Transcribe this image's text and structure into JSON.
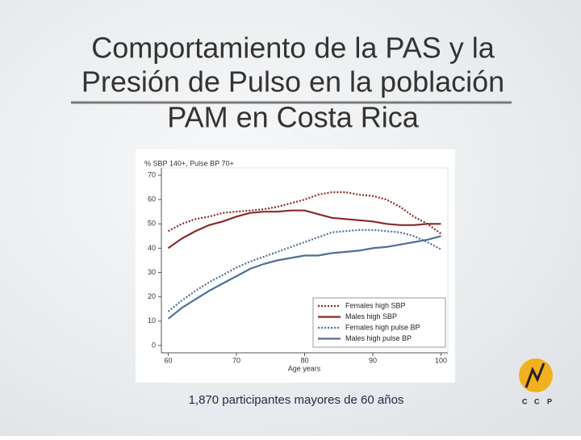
{
  "slide": {
    "title": [
      "Comportamiento de la PAS y la",
      "Presión de Pulso en la población",
      "PAM en Costa Rica"
    ],
    "caption": "1,870 participantes mayores  de 60 años",
    "logo": [
      "C",
      "C",
      "P"
    ]
  },
  "chart_data": {
    "type": "line",
    "y_label": "% SBP 140+, Pulse BP 70+",
    "x_label": "Age years",
    "x": [
      60,
      62,
      64,
      66,
      68,
      70,
      72,
      74,
      76,
      78,
      80,
      82,
      84,
      86,
      88,
      90,
      92,
      94,
      96,
      98,
      100
    ],
    "xlim": [
      59,
      101
    ],
    "xticks": [
      60,
      70,
      80,
      90,
      100
    ],
    "ylim": [
      -3,
      73
    ],
    "yticks": [
      0,
      10,
      20,
      30,
      40,
      50,
      60,
      70
    ],
    "grid": false,
    "legend": "lower right",
    "series": [
      {
        "name": "Females high SBP",
        "color": "#8b2a2a",
        "style": "dotted",
        "values": [
          47,
          50,
          52,
          53,
          54.5,
          55,
          55.5,
          56,
          57,
          58.5,
          60,
          62,
          63,
          63,
          62,
          61.5,
          60,
          57,
          53,
          50,
          46
        ]
      },
      {
        "name": "Males high SBP",
        "color": "#8b2a2a",
        "style": "solid",
        "values": [
          40,
          44,
          47,
          49.5,
          51,
          53,
          54.5,
          55,
          55,
          55.5,
          55.5,
          54,
          52.5,
          52,
          51.5,
          51,
          50,
          49.5,
          49.5,
          50,
          50
        ]
      },
      {
        "name": "Females high pulse BP",
        "color": "#4f6f96",
        "style": "dotted",
        "values": [
          14,
          18.5,
          22.5,
          26,
          29,
          32,
          34.5,
          36.5,
          38.5,
          40.5,
          42.5,
          44.5,
          46.5,
          47,
          47.5,
          47.5,
          47,
          46.5,
          45,
          42.5,
          39.5
        ]
      },
      {
        "name": "Males high pulse BP",
        "color": "#4f6f96",
        "style": "solid",
        "values": [
          11,
          15.5,
          19,
          22.5,
          25.5,
          28.5,
          31.5,
          33.5,
          35,
          36,
          37,
          37,
          38,
          38.5,
          39,
          40,
          40.5,
          41.5,
          42.5,
          43.5,
          45
        ]
      }
    ]
  }
}
